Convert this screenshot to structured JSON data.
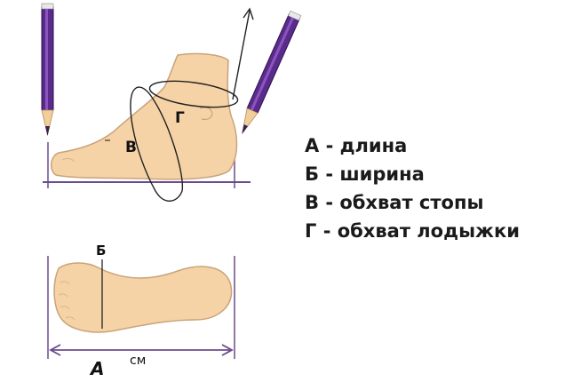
{
  "labels": {
    "side": {
      "length_mark": "Г",
      "girth_mark": "В"
    },
    "top": {
      "width_mark": "Б",
      "length_mark": "А",
      "unit": "см"
    }
  },
  "legend": [
    "А - длина",
    "Б - ширина",
    "В - обхват стопы",
    "Г - обхват лодыжки"
  ],
  "colors": {
    "skin": "#f6d3a6",
    "outline": "#c9a37a",
    "pencil": "#5b2b8c",
    "pencil_dark": "#2e1150",
    "line": "#6b4b8e"
  }
}
